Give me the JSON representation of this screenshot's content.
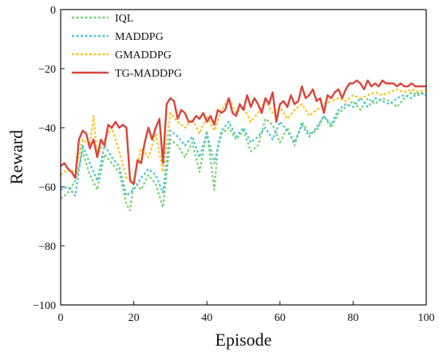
{
  "chart_data": {
    "type": "line",
    "xlabel": "Episode",
    "ylabel": "Reward",
    "xlim": [
      0,
      100
    ],
    "ylim": [
      -100,
      0
    ],
    "xticks": [
      0,
      20,
      40,
      60,
      80,
      100
    ],
    "yticks": [
      0,
      -20,
      -40,
      -60,
      -80,
      -100
    ],
    "xtick_labels": [
      "0",
      "20",
      "40",
      "60",
      "80",
      "100"
    ],
    "ytick_labels": [
      "0",
      "−20",
      "−40",
      "−60",
      "−80",
      "−100"
    ],
    "grid": false,
    "legend_position": "top-left",
    "series": [
      {
        "name": "IQL",
        "color": "#77d46e",
        "style": "dotted",
        "x": [
          0,
          2,
          4,
          6,
          8,
          10,
          12,
          14,
          16,
          18,
          19,
          20,
          22,
          24,
          26,
          28,
          30,
          32,
          34,
          36,
          38,
          40,
          42,
          43,
          44,
          46,
          48,
          50,
          52,
          54,
          56,
          58,
          60,
          62,
          64,
          66,
          68,
          70,
          72,
          74,
          76,
          78,
          80,
          82,
          84,
          86,
          88,
          90,
          92,
          94,
          96,
          98,
          100
        ],
        "values": [
          -64,
          -62,
          -58,
          -48,
          -56,
          -61,
          -49,
          -52,
          -55,
          -66,
          -68,
          -58,
          -61,
          -56,
          -59,
          -67,
          -44,
          -46,
          -50,
          -45,
          -55,
          -41,
          -61,
          -47,
          -42,
          -40,
          -44,
          -41,
          -48,
          -46,
          -37,
          -39,
          -45,
          -40,
          -46,
          -38,
          -42,
          -41,
          -36,
          -40,
          -35,
          -33,
          -31,
          -34,
          -30,
          -32,
          -30,
          -31,
          -33,
          -30,
          -28,
          -29,
          -28
        ]
      },
      {
        "name": "MADDPG",
        "color": "#4fc3d9",
        "style": "dotted",
        "x": [
          0,
          2,
          4,
          6,
          8,
          10,
          12,
          14,
          16,
          18,
          20,
          22,
          24,
          26,
          28,
          30,
          32,
          34,
          36,
          38,
          40,
          42,
          44,
          46,
          48,
          50,
          52,
          54,
          56,
          58,
          60,
          62,
          64,
          66,
          68,
          70,
          72,
          74,
          76,
          78,
          80,
          82,
          84,
          86,
          88,
          90,
          92,
          94,
          96,
          98,
          100
        ],
        "values": [
          -61,
          -60,
          -63,
          -46,
          -52,
          -58,
          -46,
          -50,
          -53,
          -63,
          -61,
          -57,
          -54,
          -56,
          -62,
          -41,
          -43,
          -46,
          -43,
          -50,
          -42,
          -52,
          -41,
          -38,
          -43,
          -40,
          -45,
          -43,
          -40,
          -44,
          -38,
          -41,
          -45,
          -39,
          -43,
          -40,
          -36,
          -39,
          -34,
          -32,
          -33,
          -30,
          -33,
          -30,
          -31,
          -32,
          -30,
          -29,
          -30,
          -28,
          -29
        ]
      },
      {
        "name": "GMADDPG",
        "color": "#ffc21a",
        "style": "dotted",
        "x": [
          0,
          2,
          4,
          6,
          8,
          9,
          10,
          12,
          14,
          16,
          18,
          20,
          22,
          24,
          26,
          28,
          30,
          32,
          34,
          36,
          38,
          40,
          42,
          44,
          46,
          48,
          50,
          52,
          54,
          56,
          58,
          60,
          62,
          64,
          66,
          68,
          70,
          72,
          74,
          76,
          78,
          80,
          82,
          84,
          86,
          88,
          90,
          92,
          94,
          96,
          98,
          100
        ],
        "values": [
          -56,
          -54,
          -55,
          -44,
          -46,
          -36,
          -50,
          -44,
          -40,
          -48,
          -57,
          -58,
          -47,
          -50,
          -42,
          -55,
          -35,
          -38,
          -40,
          -37,
          -42,
          -36,
          -41,
          -34,
          -30,
          -35,
          -33,
          -38,
          -35,
          -31,
          -35,
          -33,
          -37,
          -34,
          -32,
          -36,
          -34,
          -32,
          -31,
          -30,
          -31,
          -29,
          -30,
          -29,
          -28,
          -29,
          -28,
          -27,
          -28,
          -27,
          -28,
          -27
        ]
      },
      {
        "name": "TG-MADDPG",
        "color": "#d9443a",
        "style": "solid",
        "x": [
          0,
          1,
          2,
          3,
          4,
          5,
          6,
          7,
          8,
          9,
          10,
          11,
          12,
          13,
          14,
          15,
          16,
          17,
          18,
          19,
          20,
          21,
          22,
          23,
          24,
          25,
          26,
          27,
          28,
          29,
          30,
          31,
          32,
          33,
          34,
          35,
          36,
          37,
          38,
          39,
          40,
          41,
          42,
          43,
          44,
          45,
          46,
          47,
          48,
          49,
          50,
          51,
          52,
          53,
          54,
          55,
          56,
          57,
          58,
          59,
          60,
          61,
          62,
          63,
          64,
          65,
          66,
          67,
          68,
          69,
          70,
          71,
          72,
          73,
          74,
          75,
          76,
          77,
          78,
          79,
          80,
          81,
          82,
          83,
          84,
          85,
          86,
          87,
          88,
          89,
          90,
          91,
          92,
          93,
          94,
          95,
          96,
          97,
          98,
          99,
          100
        ],
        "values": [
          -53,
          -52,
          -54,
          -55,
          -57,
          -44,
          -41,
          -42,
          -47,
          -44,
          -50,
          -44,
          -46,
          -39,
          -40,
          -38,
          -40,
          -39,
          -40,
          -58,
          -59,
          -51,
          -52,
          -45,
          -40,
          -44,
          -40,
          -37,
          -52,
          -32,
          -30,
          -31,
          -37,
          -34,
          -35,
          -38,
          -38,
          -36,
          -37,
          -35,
          -38,
          -36,
          -39,
          -34,
          -35,
          -34,
          -30,
          -35,
          -36,
          -32,
          -34,
          -29,
          -33,
          -30,
          -32,
          -35,
          -30,
          -32,
          -28,
          -38,
          -32,
          -31,
          -33,
          -29,
          -32,
          -31,
          -26,
          -30,
          -29,
          -27,
          -31,
          -30,
          -35,
          -29,
          -30,
          -28,
          -27,
          -30,
          -27,
          -25,
          -25,
          -24,
          -25,
          -27,
          -24,
          -26,
          -25,
          -26,
          -24,
          -25,
          -25,
          -25,
          -26,
          -25,
          -26,
          -26,
          -25,
          -26,
          -26,
          -26,
          -26
        ]
      }
    ]
  }
}
